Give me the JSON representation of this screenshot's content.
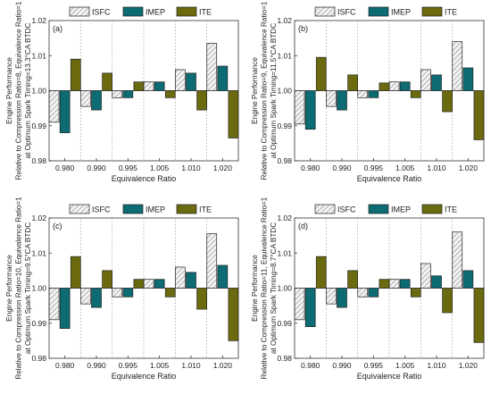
{
  "chart_data": [
    {
      "type": "bar",
      "panel_label": "(a)",
      "categories": [
        "0.980",
        "0.990",
        "0.995",
        "1.005",
        "1.010",
        "1.020"
      ],
      "series": [
        {
          "name": "ISFC",
          "values": [
            0.991,
            0.9955,
            0.998,
            1.0025,
            1.006,
            1.0135
          ]
        },
        {
          "name": "IMEP",
          "values": [
            0.988,
            0.9945,
            0.998,
            1.0025,
            1.005,
            1.007
          ]
        },
        {
          "name": "ITE",
          "values": [
            1.009,
            1.005,
            1.0025,
            0.998,
            0.9945,
            0.9865
          ]
        }
      ],
      "xlabel": "Equivalence Ratio",
      "ylabel_lines": [
        "Engine Performance",
        "Relative to Compression Ratio=8, Equivalence Ratio=1",
        "at Optimum Spark Timing=13.3°CA BTDC"
      ],
      "yticks": [
        "0.98",
        "0.99",
        "1.00",
        "1.01",
        "1.02"
      ],
      "ylim": [
        0.98,
        1.02
      ],
      "grid": false,
      "legend_position": "top"
    },
    {
      "type": "bar",
      "panel_label": "(b)",
      "categories": [
        "0.980",
        "0.990",
        "0.995",
        "1.005",
        "1.010",
        "1.020"
      ],
      "series": [
        {
          "name": "ISFC",
          "values": [
            0.9905,
            0.9955,
            0.998,
            1.0025,
            1.006,
            1.014
          ]
        },
        {
          "name": "IMEP",
          "values": [
            0.989,
            0.9945,
            0.998,
            1.0025,
            1.0045,
            1.0065
          ]
        },
        {
          "name": "ITE",
          "values": [
            1.0095,
            1.0045,
            1.0022,
            0.998,
            0.994,
            0.986
          ]
        }
      ],
      "xlabel": "Equivalence Ratio",
      "ylabel_lines": [
        "Engine Performance",
        "Relative to Compression Ratio=9, Equivalence Ratio=1",
        "at Optimum Spark Timing=11.5°CA BTDC"
      ],
      "yticks": [
        "0.98",
        "0.99",
        "1.00",
        "1.01",
        "1.02"
      ],
      "ylim": [
        0.98,
        1.02
      ],
      "grid": false,
      "legend_position": "top"
    },
    {
      "type": "bar",
      "panel_label": "(c)",
      "categories": [
        "0.980",
        "0.990",
        "0.995",
        "1.005",
        "1.010",
        "1.020"
      ],
      "series": [
        {
          "name": "ISFC",
          "values": [
            0.991,
            0.9955,
            0.9975,
            1.0025,
            1.006,
            1.0155
          ]
        },
        {
          "name": "IMEP",
          "values": [
            0.9885,
            0.9945,
            0.9975,
            1.0025,
            1.0045,
            1.0065
          ]
        },
        {
          "name": "ITE",
          "values": [
            1.009,
            1.005,
            1.0025,
            0.9975,
            0.994,
            0.985
          ]
        }
      ],
      "xlabel": "Equivalence Ratio",
      "ylabel_lines": [
        "Engine Performance",
        "Relative to Compression Ratio=10, Equivalence Ratio=1",
        "at Optimum Spark Timing=9.5°CA BTDC"
      ],
      "yticks": [
        "0.98",
        "0.99",
        "1.00",
        "1.01",
        "1.02"
      ],
      "ylim": [
        0.98,
        1.02
      ],
      "grid": false,
      "legend_position": "top"
    },
    {
      "type": "bar",
      "panel_label": "(d)",
      "categories": [
        "0.980",
        "0.990",
        "0.995",
        "1.005",
        "1.010",
        "1.020"
      ],
      "series": [
        {
          "name": "ISFC",
          "values": [
            0.991,
            0.9955,
            0.9975,
            1.0025,
            1.007,
            1.016
          ]
        },
        {
          "name": "IMEP",
          "values": [
            0.989,
            0.9945,
            0.9975,
            1.0025,
            1.0035,
            1.005
          ]
        },
        {
          "name": "ITE",
          "values": [
            1.009,
            1.005,
            1.0025,
            0.9975,
            0.993,
            0.9845
          ]
        }
      ],
      "xlabel": "Equivalence Ratio",
      "ylabel_lines": [
        "Engine Performance",
        "Relative to Compression Ratio=11, Equivalence Ratio=1",
        "at Optimum Spark Timing=8.7°CA BTDC"
      ],
      "yticks": [
        "0.98",
        "0.99",
        "1.00",
        "1.01",
        "1.02"
      ],
      "ylim": [
        0.98,
        1.02
      ],
      "grid": false,
      "legend_position": "top"
    }
  ],
  "colors": {
    "ISFC": "#e6e6e6",
    "IMEP": "#0c6b73",
    "ITE": "#6b6a0f",
    "axis": "#333333",
    "separator": "#999999"
  }
}
